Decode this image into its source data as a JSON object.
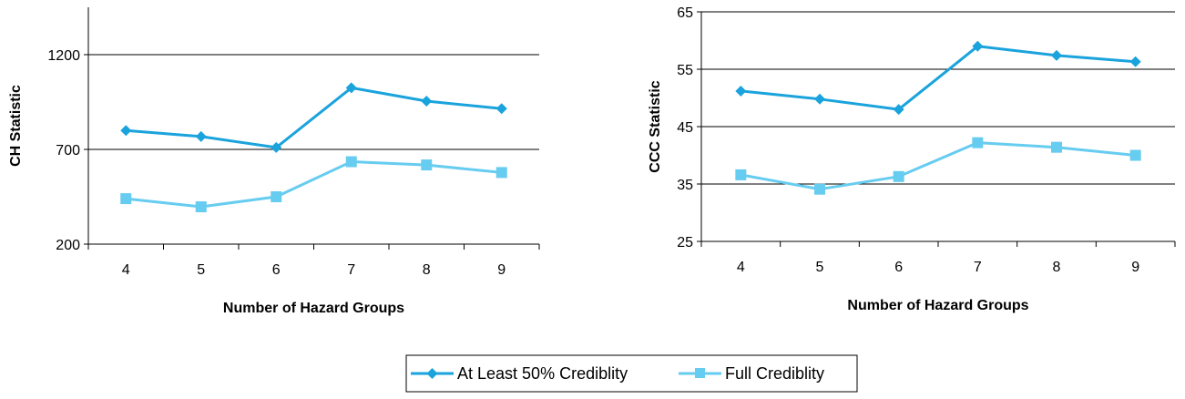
{
  "chart_data": [
    {
      "type": "line",
      "xlabel": "Number of Hazard Groups",
      "ylabel": "CH Statistic",
      "x": [
        4,
        5,
        6,
        7,
        8,
        9
      ],
      "yticks": [
        200,
        700,
        1200
      ],
      "ylim": [
        200,
        1450
      ],
      "grid": true,
      "series": [
        {
          "name": "At Least 50% Credibility",
          "values": [
            800,
            768,
            710,
            1025,
            955,
            915
          ]
        },
        {
          "name": "Full Credibility",
          "values": [
            440,
            397,
            450,
            635,
            618,
            578
          ]
        }
      ]
    },
    {
      "type": "line",
      "xlabel": "Number of Hazard Groups",
      "ylabel": "CCC Statistic",
      "x": [
        4,
        5,
        6,
        7,
        8,
        9
      ],
      "yticks": [
        25,
        35,
        45,
        55,
        65
      ],
      "ylim": [
        25,
        65
      ],
      "grid": true,
      "series": [
        {
          "name": "At Least 50% Credibility",
          "values": [
            51.2,
            49.8,
            48.0,
            59.0,
            57.4,
            56.3
          ]
        },
        {
          "name": "Full Credibility",
          "values": [
            36.6,
            34.1,
            36.3,
            42.2,
            41.4,
            40.0
          ]
        }
      ]
    }
  ],
  "legend": {
    "position": "bottom-center",
    "items": [
      {
        "label": "At Least 50% Crediblity",
        "color": "#1aa3dc",
        "marker": "diamond"
      },
      {
        "label": "Full Crediblity",
        "color": "#66ccf0",
        "marker": "square"
      }
    ]
  }
}
